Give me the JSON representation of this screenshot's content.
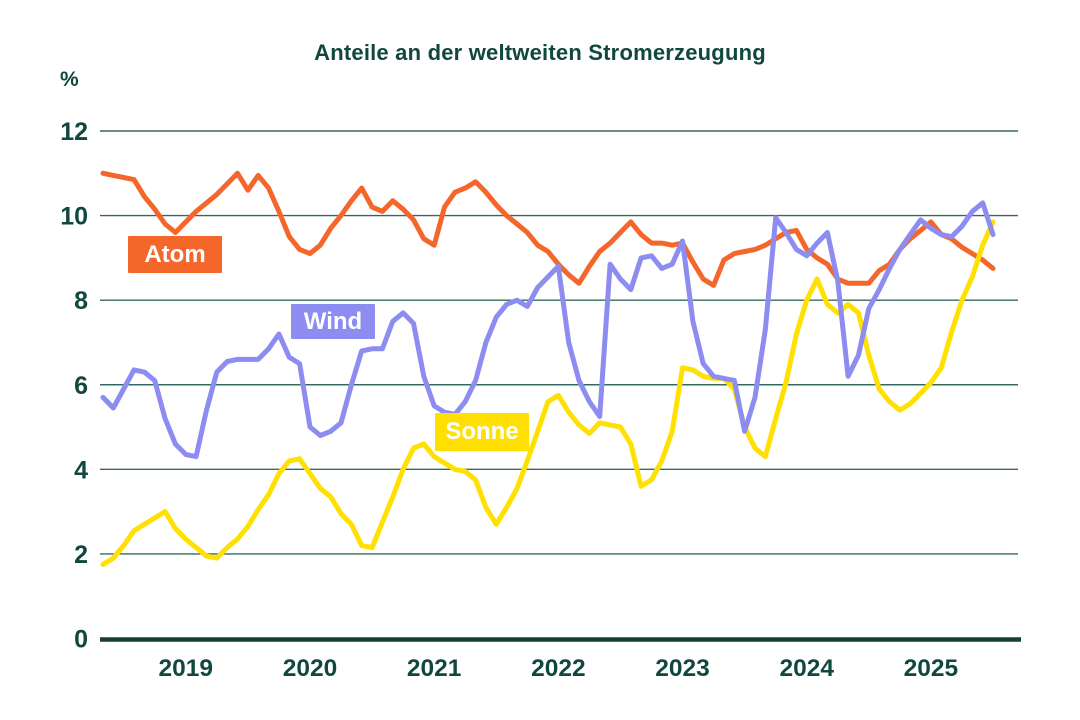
{
  "page": {
    "background": "#FFFFFF"
  },
  "title": "Anteile an der weltweiten Stromerzeugung",
  "unit_label": "%",
  "colors": {
    "text": "#10473E",
    "gridline": "#36695F",
    "axis": "#143F37",
    "atom": "#F5662B",
    "wind": "#8C8CF1",
    "sonne": "#FFE000"
  },
  "chart_data": {
    "type": "line",
    "title": "Anteile an der weltweiten Stromerzeugung",
    "ylabel": "%",
    "ylim": [
      0,
      12
    ],
    "yticks": [
      0,
      2,
      4,
      6,
      8,
      10,
      12
    ],
    "grid": true,
    "legend_position": "inline-badges",
    "x_year_labels": [
      "2019",
      "2020",
      "2021",
      "2022",
      "2023",
      "2024",
      "2025"
    ],
    "months": [
      "2018-05",
      "2018-06",
      "2018-07",
      "2018-08",
      "2018-09",
      "2018-10",
      "2018-11",
      "2018-12",
      "2019-01",
      "2019-02",
      "2019-03",
      "2019-04",
      "2019-05",
      "2019-06",
      "2019-07",
      "2019-08",
      "2019-09",
      "2019-10",
      "2019-11",
      "2019-12",
      "2020-01",
      "2020-02",
      "2020-03",
      "2020-04",
      "2020-05",
      "2020-06",
      "2020-07",
      "2020-08",
      "2020-09",
      "2020-10",
      "2020-11",
      "2020-12",
      "2021-01",
      "2021-02",
      "2021-03",
      "2021-04",
      "2021-05",
      "2021-06",
      "2021-07",
      "2021-08",
      "2021-09",
      "2021-10",
      "2021-11",
      "2021-12",
      "2022-01",
      "2022-02",
      "2022-03",
      "2022-04",
      "2022-05",
      "2022-06",
      "2022-07",
      "2022-08",
      "2022-09",
      "2022-10",
      "2022-11",
      "2022-12",
      "2023-01",
      "2023-02",
      "2023-03",
      "2023-04",
      "2023-05",
      "2023-06",
      "2023-07",
      "2023-08",
      "2023-09",
      "2023-10",
      "2023-11",
      "2023-12",
      "2024-01",
      "2024-02",
      "2024-03",
      "2024-04",
      "2024-05",
      "2024-06",
      "2024-07",
      "2024-08",
      "2024-09",
      "2024-10",
      "2024-11",
      "2024-12",
      "2025-01",
      "2025-02",
      "2025-03",
      "2025-04",
      "2025-05",
      "2025-06",
      "2025-07"
    ],
    "series": [
      {
        "name": "Atom",
        "color": "#F5662B",
        "draw_order": 0,
        "values": [
          11.0,
          10.95,
          10.9,
          10.85,
          10.45,
          10.15,
          9.8,
          9.6,
          9.85,
          10.1,
          10.3,
          10.5,
          10.75,
          11.0,
          10.6,
          10.95,
          10.65,
          10.1,
          9.5,
          9.2,
          9.1,
          9.3,
          9.7,
          10.0,
          10.35,
          10.65,
          10.2,
          10.1,
          10.35,
          10.15,
          9.9,
          9.45,
          9.3,
          10.2,
          10.55,
          10.65,
          10.8,
          10.55,
          10.25,
          10.0,
          9.8,
          9.6,
          9.3,
          9.15,
          8.85,
          8.6,
          8.4,
          8.8,
          9.15,
          9.35,
          9.6,
          9.85,
          9.55,
          9.35,
          9.35,
          9.3,
          9.35,
          8.9,
          8.5,
          8.35,
          8.95,
          9.1,
          9.15,
          9.2,
          9.3,
          9.45,
          9.6,
          9.65,
          9.2,
          9.0,
          8.85,
          8.5,
          8.4,
          8.4,
          8.4,
          8.7,
          8.85,
          9.2,
          9.45,
          9.65,
          9.85,
          9.55,
          9.45,
          9.25,
          9.1,
          8.95,
          8.75
        ]
      },
      {
        "name": "Wind",
        "color": "#8C8CF1",
        "draw_order": 2,
        "values": [
          5.7,
          5.45,
          5.9,
          6.35,
          6.3,
          6.1,
          5.2,
          4.6,
          4.35,
          4.3,
          5.4,
          6.3,
          6.55,
          6.6,
          6.6,
          6.6,
          6.85,
          7.2,
          6.65,
          6.5,
          5.0,
          4.8,
          4.9,
          5.1,
          6.0,
          6.8,
          6.85,
          6.85,
          7.5,
          7.7,
          7.45,
          6.2,
          5.5,
          5.35,
          5.3,
          5.6,
          6.1,
          7.0,
          7.6,
          7.9,
          8.0,
          7.85,
          8.3,
          8.55,
          8.8,
          7.0,
          6.1,
          5.6,
          5.25,
          8.85,
          8.5,
          8.25,
          9.0,
          9.05,
          8.75,
          8.85,
          9.4,
          7.5,
          6.5,
          6.2,
          6.15,
          6.1,
          4.9,
          5.7,
          7.3,
          9.95,
          9.6,
          9.2,
          9.05,
          9.35,
          9.6,
          8.45,
          6.2,
          6.7,
          7.8,
          8.25,
          8.75,
          9.2,
          9.55,
          9.9,
          9.7,
          9.55,
          9.5,
          9.75,
          10.1,
          10.3,
          9.55
        ]
      },
      {
        "name": "Sonne",
        "color": "#FFE000",
        "draw_order": 1,
        "values": [
          1.75,
          1.9,
          2.2,
          2.55,
          2.7,
          2.85,
          3.0,
          2.6,
          2.35,
          2.15,
          1.95,
          1.9,
          2.15,
          2.35,
          2.65,
          3.05,
          3.4,
          3.9,
          4.2,
          4.25,
          3.9,
          3.55,
          3.35,
          2.95,
          2.7,
          2.2,
          2.15,
          2.75,
          3.35,
          4.0,
          4.5,
          4.6,
          4.3,
          4.15,
          4.0,
          3.95,
          3.75,
          3.1,
          2.7,
          3.1,
          3.55,
          4.2,
          4.9,
          5.6,
          5.75,
          5.35,
          5.05,
          4.85,
          5.1,
          5.05,
          5.0,
          4.6,
          3.6,
          3.75,
          4.2,
          4.9,
          6.4,
          6.35,
          6.2,
          6.15,
          6.15,
          5.9,
          5.0,
          4.5,
          4.3,
          5.2,
          6.05,
          7.2,
          8.0,
          8.5,
          7.9,
          7.7,
          7.9,
          7.7,
          6.7,
          5.9,
          5.6,
          5.4,
          5.55,
          5.8,
          6.05,
          6.4,
          7.25,
          8.0,
          8.55,
          9.3,
          9.85
        ]
      }
    ]
  }
}
